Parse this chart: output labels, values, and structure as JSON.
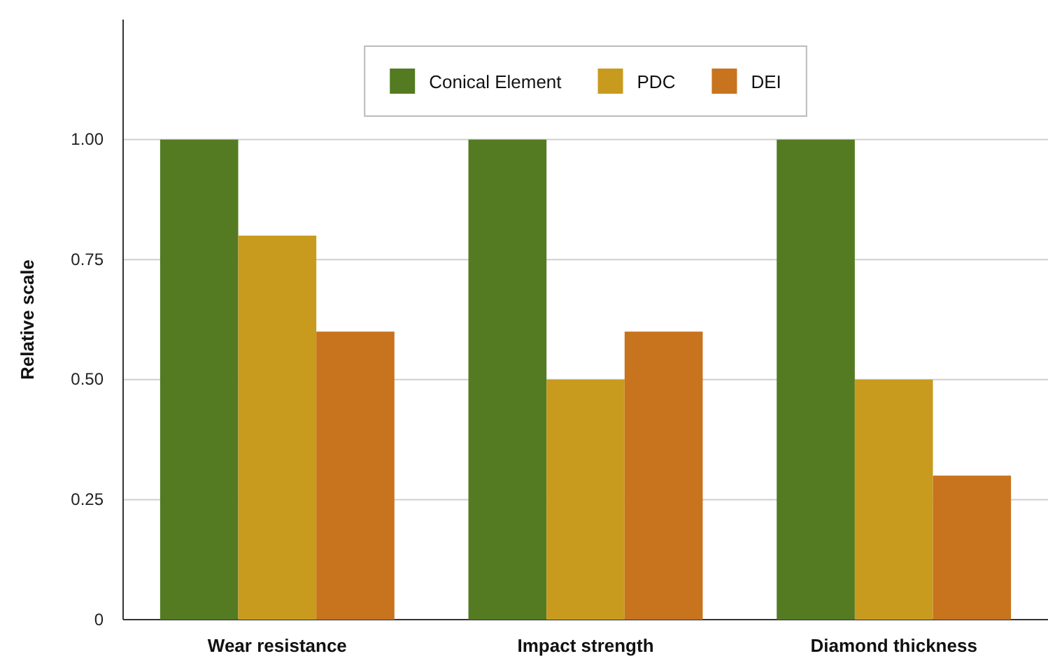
{
  "chart_data": {
    "type": "bar",
    "ylabel": "Relative scale",
    "categories": [
      "Wear resistance",
      "Impact strength",
      "Diamond thickness"
    ],
    "series": [
      {
        "name": "Conical Element",
        "color": "#547a22",
        "values": [
          1.0,
          1.0,
          1.0
        ]
      },
      {
        "name": "PDC",
        "color": "#c89b1e",
        "values": [
          0.8,
          0.5,
          0.5
        ]
      },
      {
        "name": "DEI",
        "color": "#c8731e",
        "values": [
          0.6,
          0.6,
          0.3
        ]
      }
    ],
    "ylim": [
      0,
      1.25
    ],
    "yticks": [
      0,
      {
        "value": 0.25,
        "label": "0.25"
      },
      {
        "value": 0.5,
        "label": "0.50"
      },
      {
        "value": 0.75,
        "label": "0.75"
      },
      {
        "value": 1,
        "label": "1.00"
      }
    ],
    "grid": "y",
    "legend": "top"
  }
}
